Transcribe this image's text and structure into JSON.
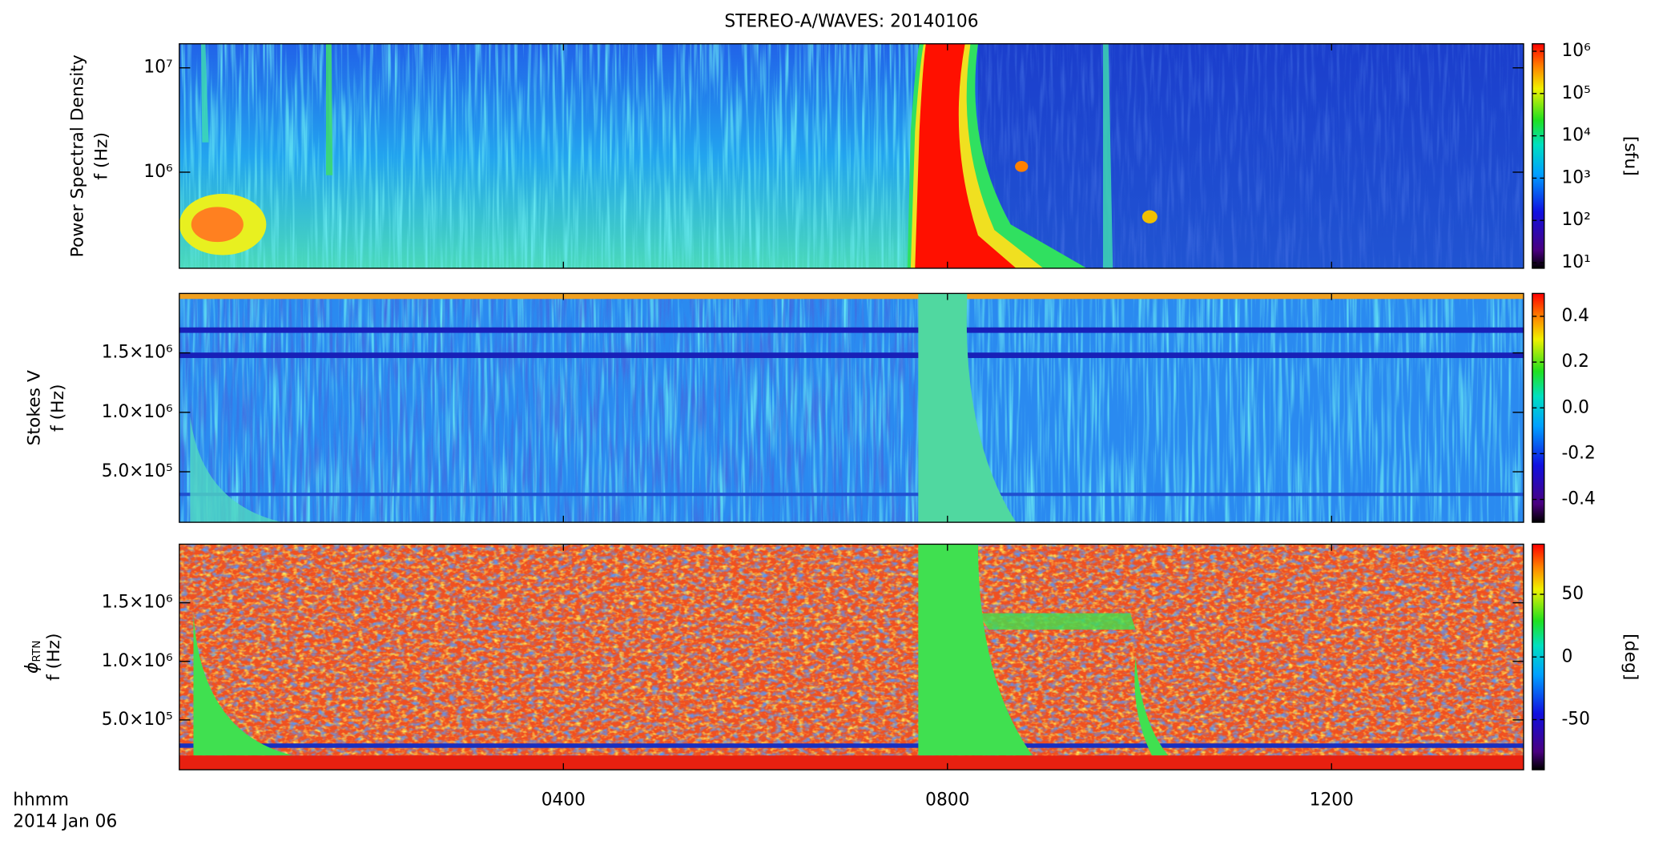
{
  "chart_data": [
    {
      "type": "heatmap",
      "title": "STEREO-A/WAVES: 20140106",
      "ylabel": [
        "Power Spectral Density",
        "f (Hz)"
      ],
      "ylog": true,
      "ylim": [
        120000,
        17000000
      ],
      "yticks": [
        {
          "value": 1000000,
          "label": "10⁶"
        },
        {
          "value": 10000000,
          "label": "10⁷"
        }
      ],
      "clog": true,
      "clim": [
        7.4,
        1500000
      ],
      "cticks": [
        {
          "value": 10,
          "label": "10¹"
        },
        {
          "value": 100,
          "label": "10²"
        },
        {
          "value": 1000,
          "label": "10³"
        },
        {
          "value": 10000,
          "label": "10⁴"
        },
        {
          "value": 100000,
          "label": "10⁵"
        },
        {
          "value": 1000000,
          "label": "10⁶"
        }
      ],
      "clabel": "[sfu]"
    },
    {
      "type": "heatmap",
      "ylabel": [
        "Stokes V",
        "f (Hz)"
      ],
      "ylog": false,
      "ylim": [
        75000,
        2000000
      ],
      "yticks": [
        {
          "value": 500000,
          "label": "5.0×10⁵"
        },
        {
          "value": 1000000,
          "label": "1.0×10⁶"
        },
        {
          "value": 1500000,
          "label": "1.5×10⁶"
        }
      ],
      "clog": false,
      "clim": [
        -0.5,
        0.5
      ],
      "cticks": [
        -0.4,
        -0.2,
        {
          "value": 0,
          "label": "0.0"
        },
        0.2,
        0.4
      ]
    },
    {
      "type": "heatmap",
      "ylabel_symbol": "ϕ",
      "ylabel_subscript": "RTN",
      "ylabel": [
        "f (Hz)"
      ],
      "ylog": false,
      "ylim": [
        75000,
        2000000
      ],
      "yticks": [
        {
          "value": 500000,
          "label": "5.0×10⁵"
        },
        {
          "value": 1000000,
          "label": "1.0×10⁶"
        },
        {
          "value": 1500000,
          "label": "1.5×10⁶"
        }
      ],
      "clog": false,
      "clim": [
        -90,
        90
      ],
      "cticks": [
        -50,
        0,
        50
      ],
      "clabel": "[deg]",
      "xlabel": [
        "hhmm",
        "2014 Jan 06"
      ],
      "xlim": [
        0,
        14
      ],
      "xticks": [
        {
          "value": 4,
          "label": "0400"
        },
        {
          "value": 8,
          "label": "0800"
        },
        {
          "value": 12,
          "label": "1200"
        }
      ]
    }
  ]
}
